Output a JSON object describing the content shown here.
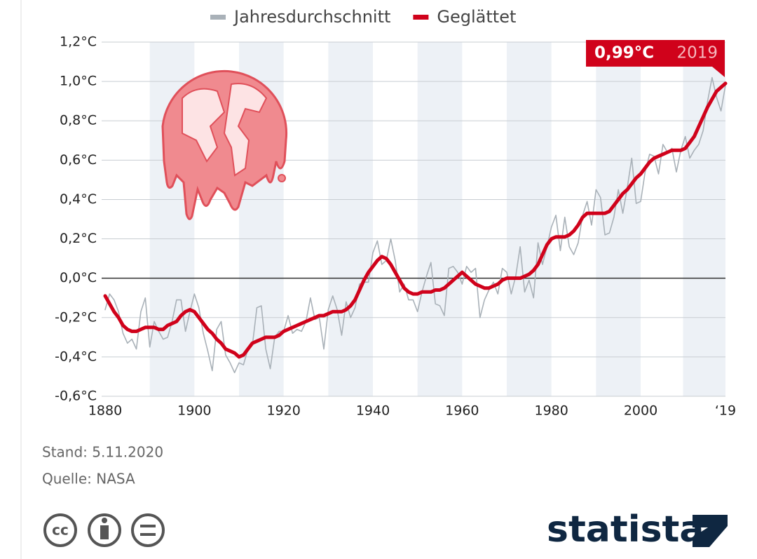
{
  "chart_data": {
    "type": "line",
    "x": [
      1880,
      1881,
      1882,
      1883,
      1884,
      1885,
      1886,
      1887,
      1888,
      1889,
      1890,
      1891,
      1892,
      1893,
      1894,
      1895,
      1896,
      1897,
      1898,
      1899,
      1900,
      1901,
      1902,
      1903,
      1904,
      1905,
      1906,
      1907,
      1908,
      1909,
      1910,
      1911,
      1912,
      1913,
      1914,
      1915,
      1916,
      1917,
      1918,
      1919,
      1920,
      1921,
      1922,
      1923,
      1924,
      1925,
      1926,
      1927,
      1928,
      1929,
      1930,
      1931,
      1932,
      1933,
      1934,
      1935,
      1936,
      1937,
      1938,
      1939,
      1940,
      1941,
      1942,
      1943,
      1944,
      1945,
      1946,
      1947,
      1948,
      1949,
      1950,
      1951,
      1952,
      1953,
      1954,
      1955,
      1956,
      1957,
      1958,
      1959,
      1960,
      1961,
      1962,
      1963,
      1964,
      1965,
      1966,
      1967,
      1968,
      1969,
      1970,
      1971,
      1972,
      1973,
      1974,
      1975,
      1976,
      1977,
      1978,
      1979,
      1980,
      1981,
      1982,
      1983,
      1984,
      1985,
      1986,
      1987,
      1988,
      1989,
      1990,
      1991,
      1992,
      1993,
      1994,
      1995,
      1996,
      1997,
      1998,
      1999,
      2000,
      2001,
      2002,
      2003,
      2004,
      2005,
      2006,
      2007,
      2008,
      2009,
      2010,
      2011,
      2012,
      2013,
      2014,
      2015,
      2016,
      2017,
      2018,
      2019
    ],
    "series": [
      {
        "name": "Jahresdurchschnitt",
        "color": "#a9b1b8",
        "width": 1.6,
        "values": [
          -0.16,
          -0.08,
          -0.11,
          -0.17,
          -0.28,
          -0.33,
          -0.31,
          -0.36,
          -0.17,
          -0.1,
          -0.35,
          -0.22,
          -0.27,
          -0.31,
          -0.3,
          -0.22,
          -0.11,
          -0.11,
          -0.27,
          -0.17,
          -0.08,
          -0.15,
          -0.28,
          -0.37,
          -0.47,
          -0.26,
          -0.22,
          -0.39,
          -0.43,
          -0.48,
          -0.43,
          -0.44,
          -0.36,
          -0.34,
          -0.15,
          -0.14,
          -0.36,
          -0.46,
          -0.3,
          -0.27,
          -0.27,
          -0.19,
          -0.28,
          -0.26,
          -0.27,
          -0.22,
          -0.1,
          -0.21,
          -0.2,
          -0.36,
          -0.16,
          -0.09,
          -0.16,
          -0.29,
          -0.12,
          -0.2,
          -0.15,
          -0.03,
          -0.02,
          -0.02,
          0.13,
          0.19,
          0.07,
          0.09,
          0.2,
          0.09,
          -0.07,
          -0.03,
          -0.11,
          -0.11,
          -0.17,
          -0.07,
          0.01,
          0.08,
          -0.13,
          -0.14,
          -0.19,
          0.05,
          0.06,
          0.03,
          -0.03,
          0.06,
          0.03,
          0.05,
          -0.2,
          -0.11,
          -0.06,
          -0.02,
          -0.08,
          0.05,
          0.03,
          -0.08,
          0.01,
          0.16,
          -0.07,
          -0.01,
          -0.1,
          0.18,
          0.07,
          0.16,
          0.26,
          0.32,
          0.14,
          0.31,
          0.16,
          0.12,
          0.18,
          0.32,
          0.39,
          0.27,
          0.45,
          0.41,
          0.22,
          0.23,
          0.31,
          0.45,
          0.33,
          0.46,
          0.61,
          0.38,
          0.39,
          0.54,
          0.63,
          0.62,
          0.53,
          0.68,
          0.64,
          0.66,
          0.54,
          0.65,
          0.72,
          0.61,
          0.65,
          0.68,
          0.75,
          0.9,
          1.02,
          0.92,
          0.85,
          0.98
        ]
      },
      {
        "name": "Geglättet",
        "color": "#d0021b",
        "width": 5,
        "values": [
          -0.09,
          -0.13,
          -0.17,
          -0.2,
          -0.24,
          -0.26,
          -0.27,
          -0.27,
          -0.26,
          -0.25,
          -0.25,
          -0.25,
          -0.26,
          -0.26,
          -0.24,
          -0.23,
          -0.22,
          -0.19,
          -0.17,
          -0.16,
          -0.17,
          -0.2,
          -0.23,
          -0.26,
          -0.28,
          -0.31,
          -0.33,
          -0.36,
          -0.37,
          -0.38,
          -0.4,
          -0.39,
          -0.36,
          -0.33,
          -0.32,
          -0.31,
          -0.3,
          -0.3,
          -0.3,
          -0.29,
          -0.27,
          -0.26,
          -0.25,
          -0.24,
          -0.23,
          -0.22,
          -0.21,
          -0.2,
          -0.19,
          -0.19,
          -0.18,
          -0.17,
          -0.17,
          -0.17,
          -0.16,
          -0.14,
          -0.11,
          -0.06,
          -0.01,
          0.03,
          0.06,
          0.09,
          0.11,
          0.1,
          0.07,
          0.03,
          -0.01,
          -0.05,
          -0.07,
          -0.08,
          -0.08,
          -0.07,
          -0.07,
          -0.07,
          -0.06,
          -0.06,
          -0.05,
          -0.03,
          -0.01,
          0.01,
          0.03,
          0.01,
          -0.01,
          -0.03,
          -0.04,
          -0.05,
          -0.05,
          -0.04,
          -0.03,
          -0.01,
          0.0,
          0.0,
          0.0,
          0.0,
          0.01,
          0.02,
          0.04,
          0.07,
          0.12,
          0.17,
          0.2,
          0.21,
          0.21,
          0.21,
          0.22,
          0.24,
          0.27,
          0.31,
          0.33,
          0.33,
          0.33,
          0.33,
          0.33,
          0.34,
          0.37,
          0.4,
          0.43,
          0.45,
          0.48,
          0.51,
          0.53,
          0.56,
          0.59,
          0.61,
          0.62,
          0.63,
          0.64,
          0.65,
          0.65,
          0.65,
          0.66,
          0.69,
          0.72,
          0.77,
          0.82,
          0.87,
          0.91,
          0.95,
          0.97,
          0.99
        ]
      }
    ],
    "xlim": [
      1880,
      2019
    ],
    "xticks": [
      1880,
      1900,
      1920,
      1940,
      1960,
      1980,
      2000,
      {
        "value": 2019,
        "label": "‘19"
      }
    ],
    "ylim": [
      -0.6,
      1.2
    ],
    "yticks": [
      {
        "value": -0.6,
        "label": "-0,6°C"
      },
      {
        "value": -0.4,
        "label": "-0,4°C"
      },
      {
        "value": -0.2,
        "label": "-0,2°C"
      },
      {
        "value": 0,
        "label": "0,0°C"
      },
      {
        "value": 0.2,
        "label": "0,2°C"
      },
      {
        "value": 0.4,
        "label": "0,4°C"
      },
      {
        "value": 0.6,
        "label": "0,6°C"
      },
      {
        "value": 0.8,
        "label": "0,8°C"
      },
      {
        "value": 1.0,
        "label": "1,0°C"
      },
      {
        "value": 1.2,
        "label": "1,2°C"
      }
    ],
    "grid": true,
    "legend": "top",
    "annotation": [
      "0,99°C",
      "2019"
    ],
    "notes": [
      "Stand: 5.11.2020",
      "Quelle: NASA"
    ],
    "license_icon": "cc",
    "brand": "statista"
  }
}
